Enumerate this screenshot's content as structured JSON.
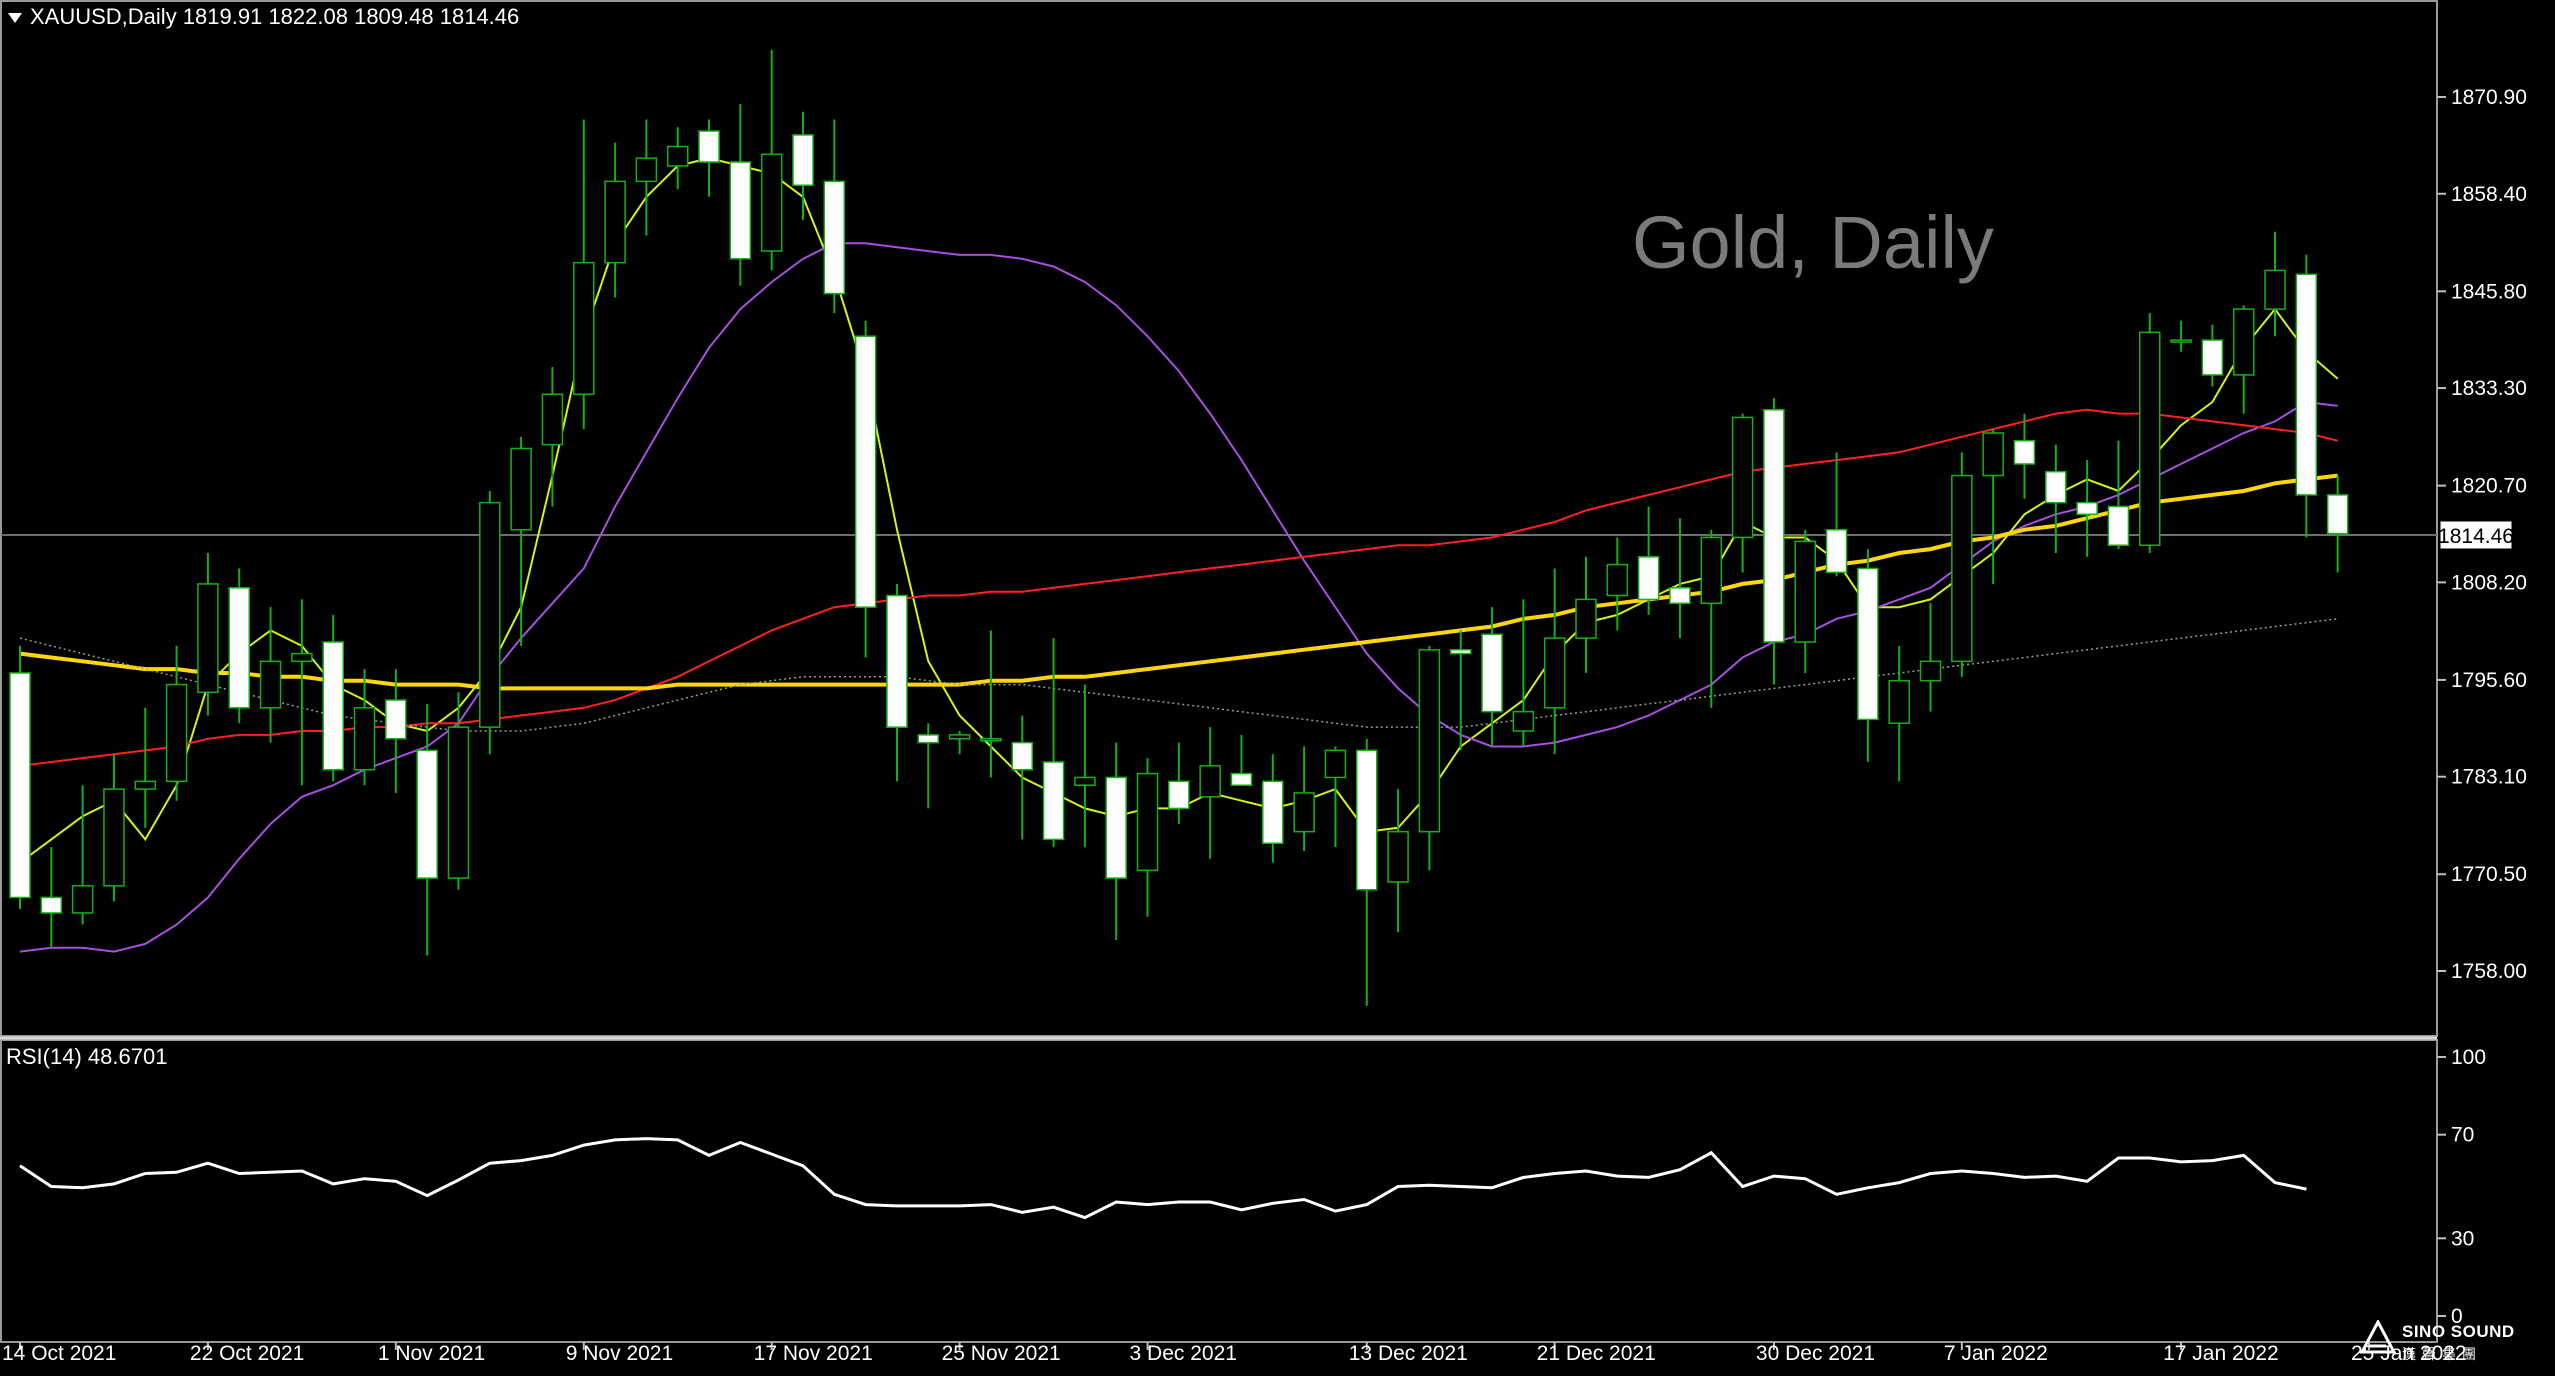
{
  "header": {
    "symbol_line": "XAUUSD,Daily  1819.91 1822.08 1809.48 1814.46"
  },
  "watermark": "Gold, Daily",
  "rsi_header": "RSI(14) 48.6701",
  "logo": {
    "name": "SINO SOUND",
    "name_cn": "漢聲集團"
  },
  "chart_data": [
    {
      "type": "candlestick",
      "symbol": "XAUUSD",
      "timeframe": "Daily",
      "ohlc_label": "1819.91 1822.08 1809.48 1814.46",
      "current_price": 1814.46,
      "current_price_label": "1814.46",
      "ylim": [
        1748.0,
        1880.0
      ],
      "yticks": [
        "1870.90",
        "1858.40",
        "1845.80",
        "1833.30",
        "1820.70",
        "1808.20",
        "1795.60",
        "1783.10",
        "1770.50",
        "1758.00"
      ],
      "xticks": [
        "14 Oct 2021",
        "22 Oct 2021",
        "1 Nov 2021",
        "9 Nov 2021",
        "17 Nov 2021",
        "25 Nov 2021",
        "3 Dec 2021",
        "13 Dec 2021",
        "21 Dec 2021",
        "30 Dec 2021",
        "7 Jan 2022",
        "17 Jan 2022",
        "25 Jan 2022"
      ],
      "xtick_index": [
        0,
        6,
        12,
        18,
        24,
        30,
        36,
        43,
        49,
        56,
        62,
        69,
        75
      ],
      "candles": [
        {
          "o": 1796.5,
          "h": 1800.0,
          "l": 1766.0,
          "c": 1767.5
        },
        {
          "o": 1767.5,
          "h": 1774.0,
          "l": 1761.0,
          "c": 1765.5
        },
        {
          "o": 1765.5,
          "h": 1782.0,
          "l": 1764.0,
          "c": 1769.0
        },
        {
          "o": 1769.0,
          "h": 1786.0,
          "l": 1767.0,
          "c": 1781.5
        },
        {
          "o": 1781.5,
          "h": 1792.0,
          "l": 1776.5,
          "c": 1782.5
        },
        {
          "o": 1782.5,
          "h": 1800.0,
          "l": 1780.0,
          "c": 1795.0
        },
        {
          "o": 1794.0,
          "h": 1812.0,
          "l": 1791.0,
          "c": 1808.0
        },
        {
          "o": 1807.5,
          "h": 1810.0,
          "l": 1790.0,
          "c": 1792.0
        },
        {
          "o": 1792.0,
          "h": 1805.0,
          "l": 1787.5,
          "c": 1798.0
        },
        {
          "o": 1798.0,
          "h": 1806.0,
          "l": 1782.0,
          "c": 1799.0
        },
        {
          "o": 1800.5,
          "h": 1804.0,
          "l": 1782.5,
          "c": 1784.0
        },
        {
          "o": 1784.0,
          "h": 1797.0,
          "l": 1782.0,
          "c": 1792.0
        },
        {
          "o": 1793.0,
          "h": 1797.0,
          "l": 1781.0,
          "c": 1788.0
        },
        {
          "o": 1786.5,
          "h": 1792.5,
          "l": 1760.0,
          "c": 1770.0
        },
        {
          "o": 1770.0,
          "h": 1794.0,
          "l": 1768.5,
          "c": 1789.5
        },
        {
          "o": 1789.5,
          "h": 1820.0,
          "l": 1786.0,
          "c": 1818.5
        },
        {
          "o": 1815.0,
          "h": 1827.0,
          "l": 1800.0,
          "c": 1825.5
        },
        {
          "o": 1826.0,
          "h": 1836.0,
          "l": 1818.0,
          "c": 1832.5
        },
        {
          "o": 1832.5,
          "h": 1868.0,
          "l": 1828.0,
          "c": 1849.5
        },
        {
          "o": 1849.5,
          "h": 1865.0,
          "l": 1845.0,
          "c": 1860.0
        },
        {
          "o": 1860.0,
          "h": 1868.0,
          "l": 1853.0,
          "c": 1863.0
        },
        {
          "o": 1862.0,
          "h": 1867.0,
          "l": 1859.0,
          "c": 1864.5
        },
        {
          "o": 1866.5,
          "h": 1868.0,
          "l": 1858.0,
          "c": 1862.5
        },
        {
          "o": 1862.5,
          "h": 1870.0,
          "l": 1846.5,
          "c": 1850.0
        },
        {
          "o": 1851.0,
          "h": 1877.0,
          "l": 1848.5,
          "c": 1863.5
        },
        {
          "o": 1866.0,
          "h": 1869.0,
          "l": 1855.0,
          "c": 1859.5
        },
        {
          "o": 1860.0,
          "h": 1868.0,
          "l": 1843.0,
          "c": 1845.5
        },
        {
          "o": 1840.0,
          "h": 1842.0,
          "l": 1798.5,
          "c": 1805.0
        },
        {
          "o": 1806.5,
          "h": 1808.0,
          "l": 1782.5,
          "c": 1789.5
        },
        {
          "o": 1788.5,
          "h": 1790.0,
          "l": 1779.0,
          "c": 1787.5
        },
        {
          "o": 1788.0,
          "h": 1789.0,
          "l": 1786.0,
          "c": 1788.5
        },
        {
          "o": 1788.0,
          "h": 1802.0,
          "l": 1783.0,
          "c": 1788.0
        },
        {
          "o": 1787.5,
          "h": 1791.0,
          "l": 1775.0,
          "c": 1784.0
        },
        {
          "o": 1785.0,
          "h": 1801.0,
          "l": 1774.0,
          "c": 1775.0
        },
        {
          "o": 1782.0,
          "h": 1795.0,
          "l": 1774.0,
          "c": 1783.0
        },
        {
          "o": 1783.0,
          "h": 1787.5,
          "l": 1762.0,
          "c": 1770.0
        },
        {
          "o": 1771.0,
          "h": 1785.5,
          "l": 1765.0,
          "c": 1783.5
        },
        {
          "o": 1782.5,
          "h": 1787.5,
          "l": 1777.0,
          "c": 1779.0
        },
        {
          "o": 1780.5,
          "h": 1789.5,
          "l": 1772.5,
          "c": 1784.5
        },
        {
          "o": 1783.5,
          "h": 1788.5,
          "l": 1782.0,
          "c": 1782.0
        },
        {
          "o": 1782.5,
          "h": 1786.0,
          "l": 1772.0,
          "c": 1774.5
        },
        {
          "o": 1776.0,
          "h": 1787.0,
          "l": 1773.5,
          "c": 1781.0
        },
        {
          "o": 1783.0,
          "h": 1787.0,
          "l": 1774.0,
          "c": 1786.5
        },
        {
          "o": 1786.5,
          "h": 1788.0,
          "l": 1753.5,
          "c": 1768.5
        },
        {
          "o": 1769.5,
          "h": 1781.5,
          "l": 1763.0,
          "c": 1776.0
        },
        {
          "o": 1776.0,
          "h": 1800.0,
          "l": 1771.0,
          "c": 1799.5
        },
        {
          "o": 1799.5,
          "h": 1802.0,
          "l": 1786.5,
          "c": 1799.0
        },
        {
          "o": 1801.5,
          "h": 1805.0,
          "l": 1787.0,
          "c": 1791.5
        },
        {
          "o": 1789.0,
          "h": 1806.0,
          "l": 1787.0,
          "c": 1791.5
        },
        {
          "o": 1792.0,
          "h": 1810.0,
          "l": 1786.0,
          "c": 1801.0
        },
        {
          "o": 1801.0,
          "h": 1811.5,
          "l": 1796.5,
          "c": 1806.0
        },
        {
          "o": 1806.5,
          "h": 1814.0,
          "l": 1802.0,
          "c": 1810.5
        },
        {
          "o": 1811.5,
          "h": 1818.0,
          "l": 1804.0,
          "c": 1806.0
        },
        {
          "o": 1807.5,
          "h": 1816.5,
          "l": 1801.0,
          "c": 1805.5
        },
        {
          "o": 1805.5,
          "h": 1815.0,
          "l": 1792.0,
          "c": 1814.0
        },
        {
          "o": 1814.0,
          "h": 1830.0,
          "l": 1809.5,
          "c": 1829.5
        },
        {
          "o": 1830.5,
          "h": 1832.0,
          "l": 1795.0,
          "c": 1800.5
        },
        {
          "o": 1800.5,
          "h": 1815.0,
          "l": 1796.5,
          "c": 1813.5
        },
        {
          "o": 1815.0,
          "h": 1825.0,
          "l": 1809.0,
          "c": 1809.5
        },
        {
          "o": 1810.0,
          "h": 1812.5,
          "l": 1785.0,
          "c": 1790.5
        },
        {
          "o": 1790.0,
          "h": 1800.0,
          "l": 1782.5,
          "c": 1795.5
        },
        {
          "o": 1795.5,
          "h": 1805.5,
          "l": 1791.5,
          "c": 1798.0
        },
        {
          "o": 1798.0,
          "h": 1825.0,
          "l": 1796.0,
          "c": 1822.0
        },
        {
          "o": 1822.0,
          "h": 1828.0,
          "l": 1808.0,
          "c": 1827.5
        },
        {
          "o": 1826.5,
          "h": 1830.0,
          "l": 1819.0,
          "c": 1823.5
        },
        {
          "o": 1822.5,
          "h": 1826.0,
          "l": 1812.0,
          "c": 1818.5
        },
        {
          "o": 1818.5,
          "h": 1824.0,
          "l": 1811.5,
          "c": 1817.0
        },
        {
          "o": 1818.0,
          "h": 1826.5,
          "l": 1812.5,
          "c": 1813.0
        },
        {
          "o": 1813.0,
          "h": 1843.0,
          "l": 1812.0,
          "c": 1840.5
        },
        {
          "o": 1839.5,
          "h": 1842.0,
          "l": 1838.0,
          "c": 1839.5
        },
        {
          "o": 1839.5,
          "h": 1841.5,
          "l": 1833.5,
          "c": 1835.0
        },
        {
          "o": 1835.0,
          "h": 1844.0,
          "l": 1830.0,
          "c": 1843.5
        },
        {
          "o": 1843.5,
          "h": 1853.5,
          "l": 1840.0,
          "c": 1848.5
        },
        {
          "o": 1848.0,
          "h": 1850.5,
          "l": 1814.0,
          "c": 1819.5
        },
        {
          "o": 1819.5,
          "h": 1822.0,
          "l": 1809.5,
          "c": 1814.5
        }
      ],
      "moving_averages": [
        {
          "color": "#d4f21e",
          "values": [
            1772.0,
            1775.0,
            1778.0,
            1780.0,
            1775.0,
            1782.0,
            1795.0,
            1799.0,
            1802.0,
            1800.0,
            1795.0,
            1793.0,
            1790.0,
            1789.0,
            1792.0,
            1797.0,
            1805.0,
            1822.0,
            1840.0,
            1852.0,
            1858.0,
            1862.0,
            1863.0,
            1862.0,
            1861.0,
            1858.0,
            1848.0,
            1835.0,
            1815.0,
            1798.0,
            1791.0,
            1787.0,
            1783.0,
            1781.0,
            1779.0,
            1778.0,
            1779.0,
            1779.0,
            1781.0,
            1780.0,
            1779.0,
            1780.0,
            1781.5,
            1776.0,
            1776.5,
            1781.0,
            1787.0,
            1790.0,
            1793.0,
            1799.0,
            1803.0,
            1804.0,
            1806.0,
            1808.0,
            1809.0,
            1816.0,
            1814.0,
            1814.0,
            1811.0,
            1805.0,
            1805.0,
            1806.0,
            1809.0,
            1812.0,
            1817.0,
            1819.5,
            1821.5,
            1820.0,
            1824.0,
            1828.5,
            1831.5,
            1838.5,
            1843.5,
            1838.0,
            1834.5
          ]
        },
        {
          "color": "#a84ee0",
          "values": [
            1760.5,
            1761.0,
            1761.0,
            1760.5,
            1761.5,
            1764.0,
            1767.5,
            1772.5,
            1777.0,
            1780.5,
            1782.0,
            1784.0,
            1785.5,
            1787.0,
            1790.0,
            1796.0,
            1801.0,
            1805.5,
            1810.0,
            1818.0,
            1825.0,
            1832.0,
            1838.5,
            1843.5,
            1847.0,
            1850.0,
            1852.0,
            1852.0,
            1851.5,
            1851.0,
            1850.5,
            1850.5,
            1850.0,
            1849.0,
            1847.0,
            1844.0,
            1840.0,
            1835.5,
            1830.0,
            1824.0,
            1817.5,
            1811.0,
            1805.0,
            1799.0,
            1794.5,
            1791.0,
            1788.5,
            1787.0,
            1787.0,
            1787.5,
            1788.5,
            1789.5,
            1791.0,
            1793.0,
            1795.0,
            1798.5,
            1800.5,
            1801.5,
            1803.5,
            1804.5,
            1806.0,
            1807.5,
            1810.5,
            1813.5,
            1815.5,
            1817.0,
            1818.0,
            1819.5,
            1821.5,
            1823.5,
            1825.5,
            1827.5,
            1829.0,
            1831.5,
            1831.0
          ]
        },
        {
          "color": "#ff2020",
          "values": [
            1784.5,
            1785.0,
            1785.5,
            1786.0,
            1786.5,
            1787.0,
            1788.0,
            1788.5,
            1788.5,
            1789.0,
            1789.0,
            1789.5,
            1789.5,
            1790.0,
            1790.0,
            1790.5,
            1791.0,
            1791.5,
            1792.0,
            1793.0,
            1794.5,
            1796.0,
            1798.0,
            1800.0,
            1802.0,
            1803.5,
            1805.0,
            1805.5,
            1806.0,
            1806.5,
            1806.5,
            1807.0,
            1807.0,
            1807.5,
            1808.0,
            1808.5,
            1809.0,
            1809.5,
            1810.0,
            1810.5,
            1811.0,
            1811.5,
            1812.0,
            1812.5,
            1813.0,
            1813.0,
            1813.5,
            1814.0,
            1815.0,
            1816.0,
            1817.5,
            1818.5,
            1819.5,
            1820.5,
            1821.5,
            1822.5,
            1823.0,
            1823.5,
            1824.0,
            1824.5,
            1825.0,
            1826.0,
            1827.0,
            1828.0,
            1829.0,
            1830.0,
            1830.5,
            1830.0,
            1830.0,
            1829.5,
            1829.0,
            1828.5,
            1828.0,
            1827.5,
            1826.5
          ]
        },
        {
          "color": "#ffd60a",
          "values": [
            1799.0,
            1798.5,
            1798.0,
            1797.5,
            1797.0,
            1797.0,
            1796.5,
            1796.5,
            1796.0,
            1796.0,
            1795.5,
            1795.5,
            1795.0,
            1795.0,
            1795.0,
            1794.5,
            1794.5,
            1794.5,
            1794.5,
            1794.5,
            1794.5,
            1795.0,
            1795.0,
            1795.0,
            1795.0,
            1795.0,
            1795.0,
            1795.0,
            1795.0,
            1795.0,
            1795.0,
            1795.5,
            1795.5,
            1796.0,
            1796.0,
            1796.5,
            1797.0,
            1797.5,
            1798.0,
            1798.5,
            1799.0,
            1799.5,
            1800.0,
            1800.5,
            1801.0,
            1801.5,
            1802.0,
            1802.5,
            1803.5,
            1804.0,
            1805.0,
            1805.5,
            1806.0,
            1806.5,
            1807.0,
            1808.0,
            1808.5,
            1809.5,
            1810.5,
            1811.0,
            1812.0,
            1812.5,
            1813.5,
            1814.0,
            1815.0,
            1815.5,
            1816.5,
            1817.5,
            1818.5,
            1819.0,
            1819.5,
            1820.0,
            1821.0,
            1821.5,
            1822.0
          ]
        },
        {
          "color": "#9a9a9a",
          "dotted": true,
          "values": [
            1801.0,
            1800.0,
            1799.0,
            1798.0,
            1797.0,
            1796.0,
            1795.0,
            1794.0,
            1793.0,
            1792.0,
            1791.0,
            1790.5,
            1790.0,
            1789.5,
            1789.0,
            1789.0,
            1789.0,
            1789.5,
            1790.0,
            1791.0,
            1792.0,
            1793.0,
            1794.0,
            1795.0,
            1795.5,
            1796.0,
            1796.0,
            1796.0,
            1796.0,
            1795.5,
            1795.0,
            1795.0,
            1795.0,
            1794.5,
            1794.0,
            1793.5,
            1793.0,
            1792.5,
            1792.0,
            1791.5,
            1791.0,
            1790.5,
            1790.0,
            1789.5,
            1789.5,
            1789.5,
            1789.5,
            1790.0,
            1790.5,
            1791.0,
            1791.5,
            1792.0,
            1792.5,
            1793.0,
            1793.5,
            1794.0,
            1794.5,
            1795.0,
            1795.5,
            1796.0,
            1796.5,
            1797.0,
            1797.5,
            1798.0,
            1798.5,
            1799.0,
            1799.5,
            1800.0,
            1800.5,
            1801.0,
            1801.5,
            1802.0,
            1802.5,
            1803.0,
            1803.5
          ]
        }
      ]
    },
    {
      "type": "line",
      "name": "RSI(14)",
      "value_label": "48.6701",
      "ylim": [
        0,
        100
      ],
      "yticks": [
        "100",
        "70",
        "30",
        "0"
      ],
      "values": [
        58,
        50,
        49.5,
        51,
        55,
        55.5,
        59,
        55,
        55.5,
        56,
        51,
        53,
        52,
        46.5,
        52.5,
        59,
        60,
        62,
        66,
        68,
        68.5,
        68,
        62,
        67,
        62.5,
        58,
        47,
        43,
        42.5,
        42.5,
        42.5,
        43,
        40,
        42,
        38,
        44,
        43,
        44,
        44,
        41,
        43.5,
        45,
        40.5,
        43,
        50,
        50.5,
        50,
        49.5,
        53.5,
        55,
        56,
        54,
        53.5,
        56.5,
        63,
        50,
        54,
        53,
        47,
        49.5,
        51.5,
        55,
        56,
        55,
        53.5,
        54,
        52,
        61,
        61,
        59.5,
        60,
        62,
        51.5,
        49
      ]
    }
  ]
}
